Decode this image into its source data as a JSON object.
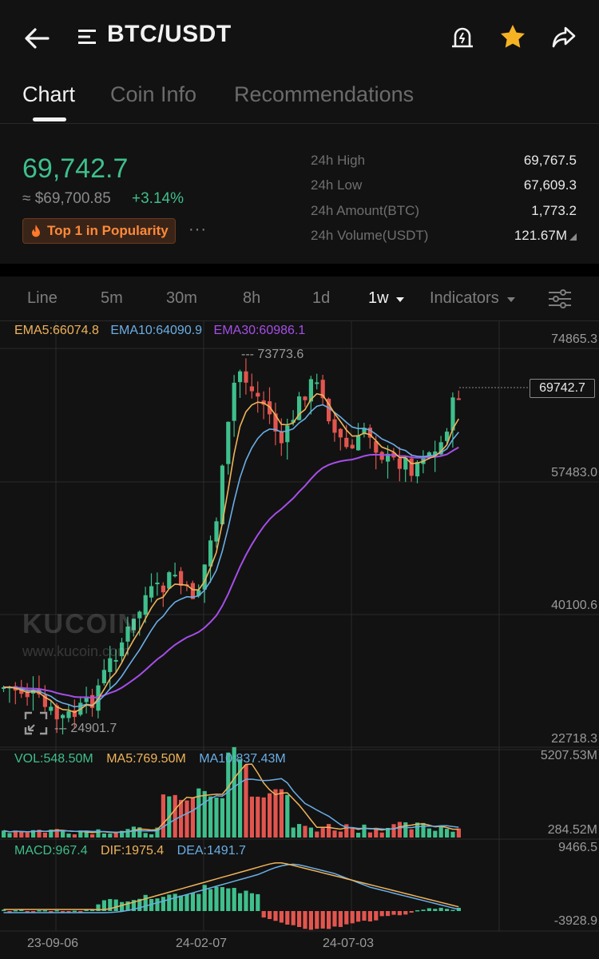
{
  "header": {
    "pair": "BTC/USDT",
    "back_icon": "arrow-left-icon",
    "menu_icon": "menu-lines-icon",
    "alert_icon": "price-alert-icon",
    "favorite_icon": "star-icon",
    "share_icon": "share-icon"
  },
  "tabs": [
    {
      "label": "Chart",
      "active": true
    },
    {
      "label": "Coin Info",
      "active": false
    },
    {
      "label": "Recommendations",
      "active": false
    }
  ],
  "price": {
    "last": "69,742.7",
    "fiat": "≈ $69,700.85",
    "change": "+3.14%",
    "badge": "Top 1 in Popularity",
    "more": "···",
    "stats": [
      {
        "label": "24h High",
        "value": "69,767.5"
      },
      {
        "label": "24h Low",
        "value": "67,609.3"
      },
      {
        "label": "24h Amount(BTC)",
        "value": "1,773.2"
      },
      {
        "label": "24h Volume(USDT)",
        "value": "121.67M"
      }
    ]
  },
  "toolbar": {
    "items": [
      "Line",
      "5m",
      "30m",
      "8h",
      "1d"
    ],
    "active_interval": "1w",
    "indicators": "Indicators",
    "settings_icon": "sliders-icon"
  },
  "main_chart": {
    "legend": {
      "ema5": "EMA5:66074.8",
      "ema10": "EMA10:64090.9",
      "ema30": "EMA30:60986.1"
    },
    "y_labels": [
      "74865.3",
      "57483.0",
      "40100.6",
      "22718.3"
    ],
    "current_price": "69742.7",
    "high_mark": "--- 73773.6",
    "low_mark": "--- 24901.7",
    "watermark": "KUCOIN",
    "watermark_url": "www.kucoin.com"
  },
  "volume": {
    "legend": {
      "vol": "VOL:548.50M",
      "ma5": "MA5:769.50M",
      "ma10": "MA10:837.43M"
    },
    "y_labels": [
      "5207.53M",
      "284.52M"
    ]
  },
  "macd": {
    "legend": {
      "macd": "MACD:967.4",
      "dif": "DIF:1975.4",
      "dea": "DEA:1491.7"
    },
    "y_labels": [
      "9466.5",
      "-3928.9"
    ]
  },
  "x_labels": [
    "23-09-06",
    "24-02-07",
    "24-07-03"
  ],
  "colors": {
    "up": "#3fbf8c",
    "down": "#e2554f",
    "ema5": "#f0b35a",
    "ema10": "#6aaee6",
    "ema30": "#a64ee8",
    "accent_star": "#f5b324"
  }
}
